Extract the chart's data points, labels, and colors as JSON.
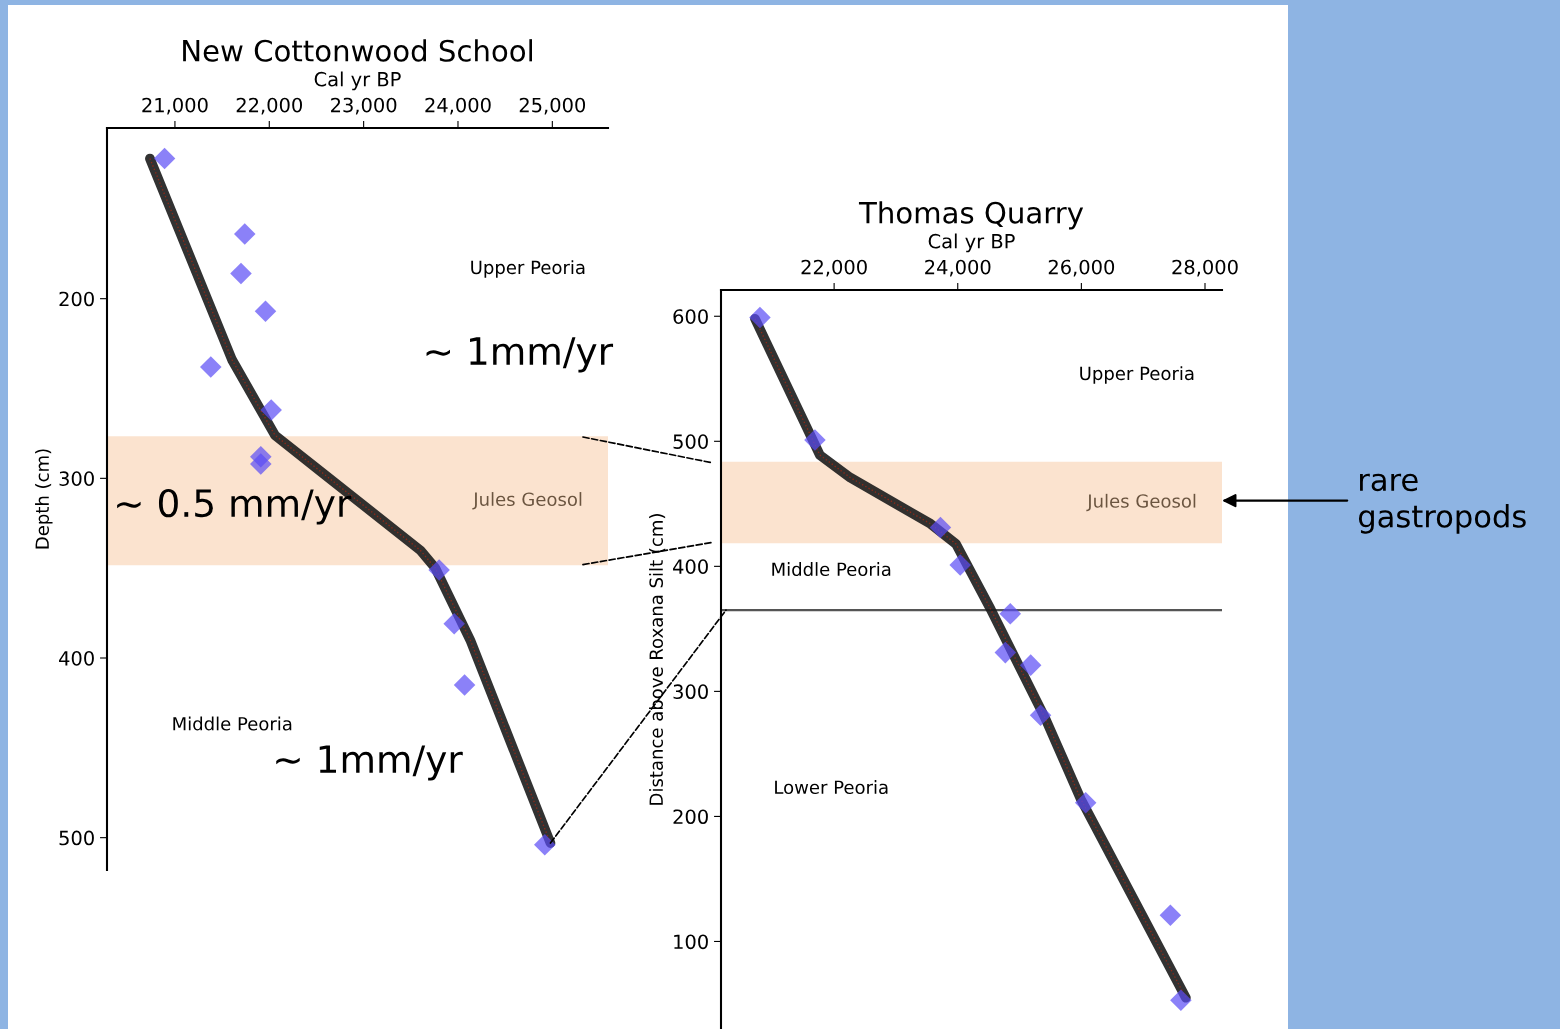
{
  "chart_data": [
    {
      "type": "line",
      "title": "New Cottonwood School",
      "xlabel": "Cal yr BP",
      "ylabel": "Depth (cm)",
      "xlim": [
        20280,
        25590
      ],
      "xticks": [
        {
          "value": 21000,
          "label": "21,000"
        },
        {
          "value": 22000,
          "label": "22,000"
        },
        {
          "value": 23000,
          "label": "23,000"
        },
        {
          "value": 24000,
          "label": "24,000"
        },
        {
          "value": 25000,
          "label": "25,000"
        }
      ],
      "ylim": [
        518,
        105
      ],
      "yticks": [
        200,
        300,
        400,
        500
      ],
      "grid": false,
      "legend": false,
      "tick_labels": "xy",
      "series": [
        {
          "type": "line",
          "color": "#1c1c1c",
          "x": [
            20735,
            21605,
            22060,
            22540,
            23600,
            23760,
            24130,
            24980
          ],
          "values": [
            122,
            234,
            276,
            296,
            340,
            350,
            390,
            503
          ]
        },
        {
          "type": "scatter",
          "color": "#5a4cf5",
          "marker": "diamond",
          "x": [
            20890,
            21740,
            21700,
            21960,
            21380,
            22020,
            21910,
            21910,
            23800,
            23960,
            24070,
            24920
          ],
          "values": [
            122,
            164,
            186,
            207,
            238,
            262,
            288,
            292,
            351,
            381,
            415,
            504
          ]
        }
      ],
      "bands": [
        {
          "axis": "y",
          "from": 277,
          "to": 348,
          "label": "Jules Geosol",
          "color": "#fbe3cf"
        }
      ],
      "annotations": [
        "Upper Peoria",
        "~ 1mm/yr",
        "~ 0.5 mm/yr",
        "Middle Peoria",
        "~ 1mm/yr"
      ]
    },
    {
      "type": "line",
      "title": "Thomas Quarry",
      "xlabel": "Cal yr BP",
      "ylabel": "Distance above Roxana Silt (cm)",
      "xlim": [
        20170,
        28275
      ],
      "xticks": [
        {
          "value": 22000,
          "label": "22,000"
        },
        {
          "value": 24000,
          "label": "24,000"
        },
        {
          "value": 26000,
          "label": "26,000"
        },
        {
          "value": 28000,
          "label": "28,000"
        }
      ],
      "ylim": [
        30,
        621
      ],
      "yticks": [
        100,
        200,
        300,
        400,
        500,
        600
      ],
      "grid": false,
      "legend": false,
      "series": [
        {
          "type": "line",
          "color": "#1c1c1c",
          "x": [
            20720,
            21770,
            22260,
            23560,
            23970,
            24530,
            25420,
            25990,
            27690
          ],
          "values": [
            598,
            489,
            471,
            434,
            418,
            366,
            278,
            214,
            55
          ]
        },
        {
          "type": "scatter",
          "color": "#5a4cf5",
          "marker": "diamond",
          "x": [
            20800,
            21690,
            23720,
            24040,
            24850,
            24770,
            25180,
            25340,
            26070,
            27440,
            27610
          ],
          "values": [
            599,
            501,
            431,
            401,
            362,
            331,
            321,
            281,
            211,
            121,
            53
          ]
        }
      ],
      "bands": [
        {
          "axis": "y",
          "from": 419,
          "to": 483,
          "label": "Jules Geosol",
          "color": "#fbe3cf"
        }
      ],
      "ref_lines": [
        {
          "axis": "y",
          "value": 365,
          "color": "#555555",
          "line_style": "solid"
        }
      ],
      "annotations": [
        "Upper Peoria",
        "Middle Peoria",
        "Lower Peoria",
        "rare\ngastropods"
      ]
    }
  ]
}
